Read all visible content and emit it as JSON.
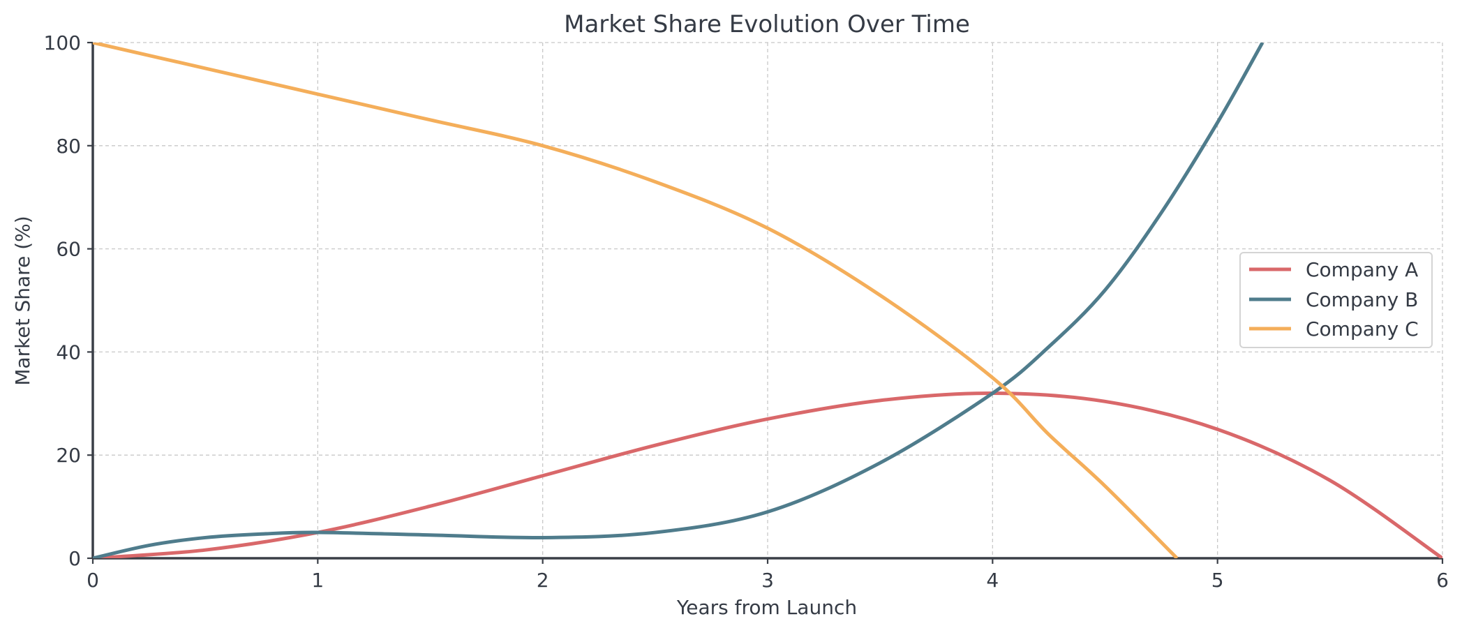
{
  "chart_data": {
    "type": "line",
    "title": "Market Share Evolution Over Time",
    "xlabel": "Years from Launch",
    "ylabel": "Market Share (%)",
    "xlim": [
      0,
      6
    ],
    "ylim": [
      0,
      100
    ],
    "x_ticks": [
      "0",
      "1",
      "2",
      "3",
      "4",
      "5",
      "6"
    ],
    "y_ticks": [
      "0",
      "20",
      "40",
      "60",
      "80",
      "100"
    ],
    "grid": true,
    "legend_position": "center-right",
    "series": [
      {
        "name": "Company A",
        "color": "#d9686a",
        "x": [
          0,
          0.5,
          1,
          1.5,
          2,
          2.5,
          3,
          3.5,
          4,
          4.5,
          5,
          5.5,
          6
        ],
        "y": [
          0,
          1.6,
          5,
          10.1,
          16,
          21.9,
          27,
          30.6,
          32,
          30.4,
          25,
          15.1,
          0
        ]
      },
      {
        "name": "Company B",
        "color": "#4f7c8c",
        "x": [
          0,
          0.25,
          0.5,
          0.75,
          1,
          1.5,
          2,
          2.5,
          3,
          3.5,
          4,
          4.25,
          4.5,
          4.75,
          5,
          5.2
        ],
        "y": [
          0,
          2.5,
          4,
          4.7,
          5,
          4.5,
          4,
          5,
          9,
          18.5,
          32,
          41,
          52,
          67,
          84.5,
          100
        ]
      },
      {
        "name": "Company C",
        "color": "#f4ae5a",
        "x": [
          0,
          0.5,
          1,
          1.5,
          2,
          2.5,
          3,
          3.5,
          4,
          4.25,
          4.5,
          4.82
        ],
        "y": [
          100,
          95,
          90,
          85,
          80,
          73,
          64,
          51,
          35,
          24,
          14,
          0
        ]
      }
    ]
  }
}
